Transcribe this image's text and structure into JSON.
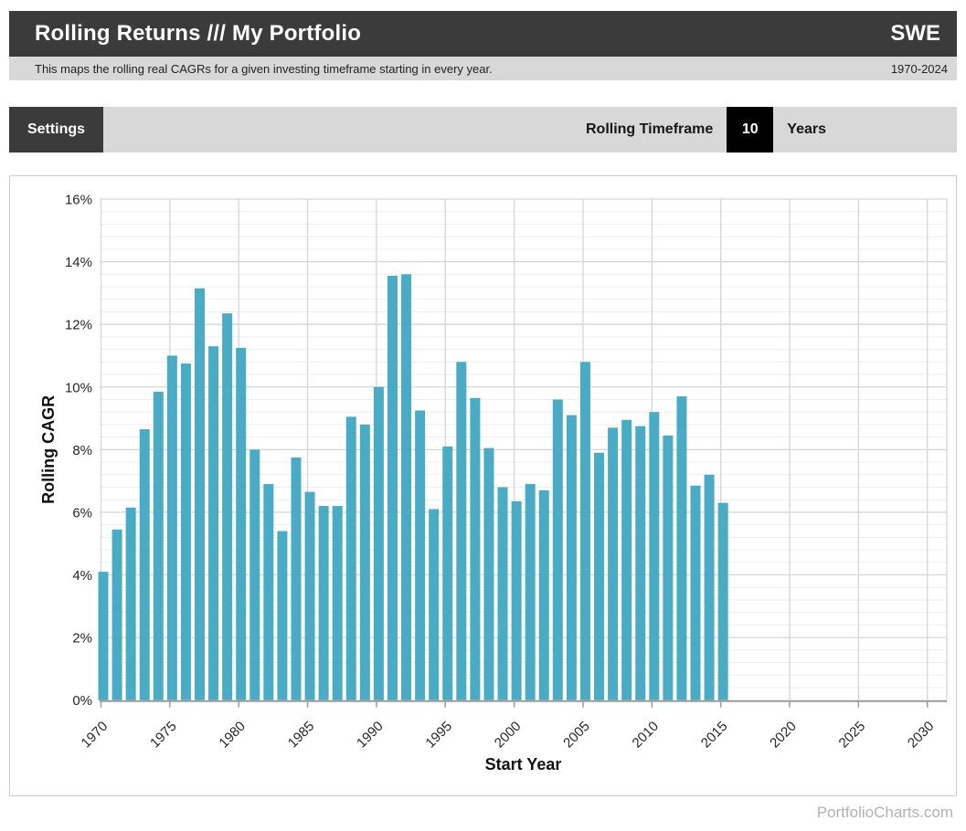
{
  "header": {
    "title": "Rolling Returns /// My Portfolio",
    "region": "SWE",
    "subtitle": "This maps the rolling real CAGRs for a given investing timeframe starting in every year.",
    "date_range": "1970-2024"
  },
  "settings_bar": {
    "settings_label": "Settings",
    "timeframe_label": "Rolling Timeframe",
    "timeframe_value": "10",
    "timeframe_unit": "Years"
  },
  "chart_data": {
    "type": "bar",
    "title": "",
    "xlabel": "Start Year",
    "ylabel": "Rolling CAGR",
    "x": [
      1970,
      1971,
      1972,
      1973,
      1974,
      1975,
      1976,
      1977,
      1978,
      1979,
      1980,
      1981,
      1982,
      1983,
      1984,
      1985,
      1986,
      1987,
      1988,
      1989,
      1990,
      1991,
      1992,
      1993,
      1994,
      1995,
      1996,
      1997,
      1998,
      1999,
      2000,
      2001,
      2002,
      2003,
      2004,
      2005,
      2006,
      2007,
      2008,
      2009,
      2010,
      2011,
      2012,
      2013,
      2014,
      2015
    ],
    "values": [
      4.1,
      5.45,
      6.15,
      8.65,
      9.85,
      11.0,
      10.75,
      13.15,
      11.3,
      12.35,
      11.25,
      8.0,
      6.9,
      5.4,
      7.75,
      6.65,
      6.2,
      6.2,
      9.05,
      8.8,
      10.0,
      13.55,
      13.6,
      9.25,
      6.1,
      8.1,
      10.8,
      9.65,
      8.05,
      6.8,
      6.35,
      6.9,
      6.7,
      9.6,
      9.1,
      10.8,
      7.9,
      8.7,
      8.95,
      8.75,
      9.2,
      8.45,
      9.7,
      6.85,
      7.2,
      6.3
    ],
    "ylim": [
      0,
      16
    ],
    "xlim": [
      1970,
      2031
    ],
    "x_ticks": [
      1970,
      1975,
      1980,
      1985,
      1990,
      1995,
      2000,
      2005,
      2010,
      2015,
      2020,
      2025,
      2030
    ],
    "y_tick_labels": [
      "0%",
      "2%",
      "4%",
      "6%",
      "8%",
      "10%",
      "12%",
      "14%",
      "16%"
    ],
    "y_major_step": 2,
    "y_minor_step": 0.4,
    "grid": "major+minor horizontal, 5-year vertical",
    "legend": false,
    "bar_color": "#4aabc5"
  },
  "footer": {
    "watermark": "PortfolioCharts.com"
  },
  "colors": {
    "header_bg": "#3b3b3b",
    "bar_bg": "#d8d8d8",
    "value_box_bg": "#000000",
    "accent": "#4aabc5",
    "grid_major": "#d6d6d6",
    "grid_minor": "#ededed",
    "axis_line": "#9a9a9a",
    "tick_text": "#262626",
    "watermark_text": "#b2b2b2"
  }
}
